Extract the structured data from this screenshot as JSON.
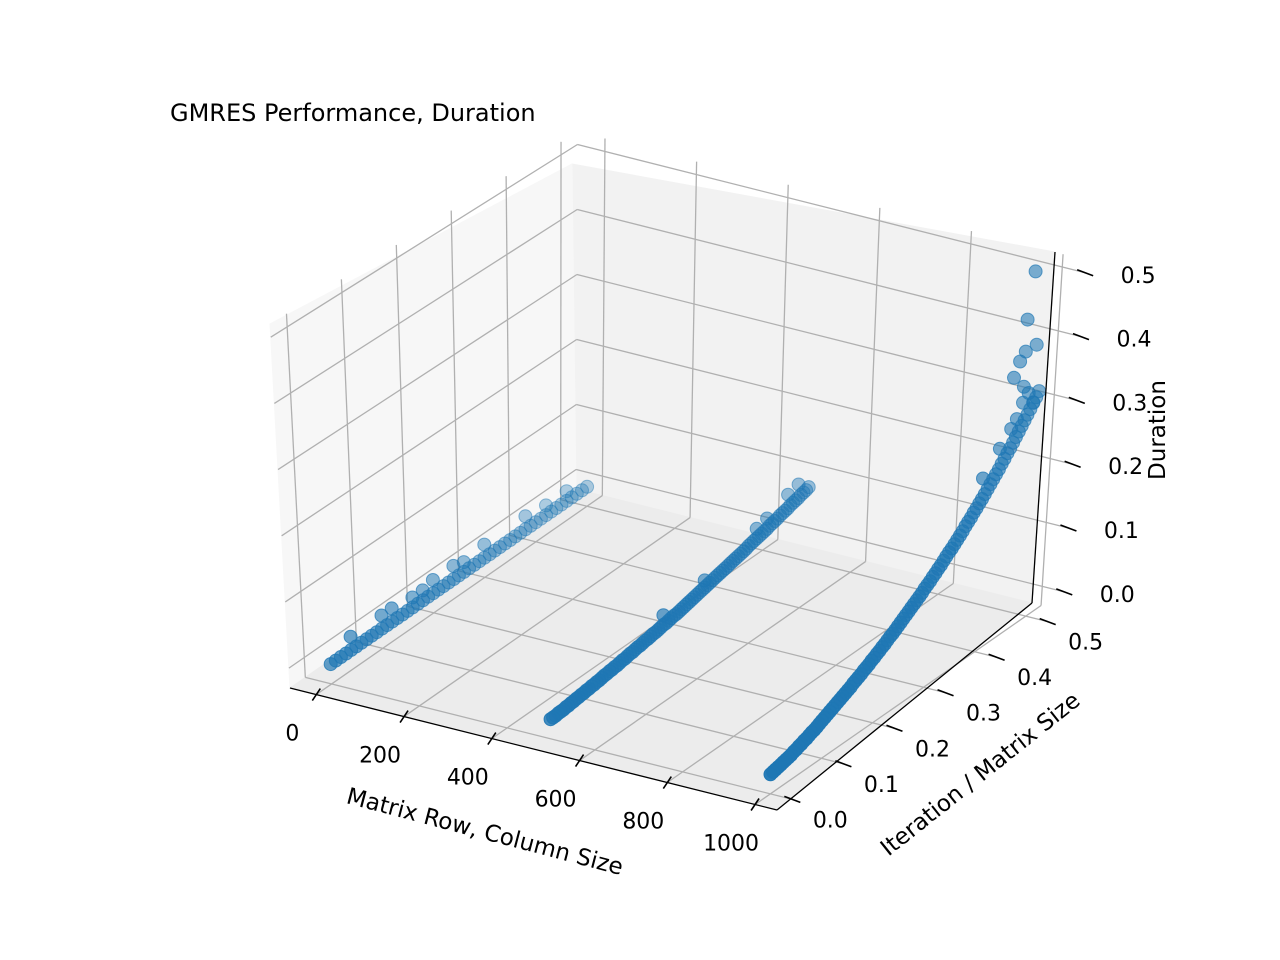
{
  "chart_data": {
    "type": "scatter",
    "title": "GMRES Performance, Duration",
    "xlabel": "Matrix Row, Column Size",
    "ylabel": "Iteration / Matrix Size",
    "zlabel": "Duration",
    "xlim": [
      -60,
      1050
    ],
    "ylim": [
      -0.03,
      0.53
    ],
    "zlim": [
      -0.03,
      0.52
    ],
    "x_ticks": [
      0,
      200,
      400,
      600,
      800,
      1000
    ],
    "y_ticks": [
      0.0,
      0.1,
      0.2,
      0.3,
      0.4,
      0.5
    ],
    "z_ticks": [
      0.0,
      0.1,
      0.2,
      0.3,
      0.4,
      0.5
    ],
    "x_tick_labels": [
      "0",
      "200",
      "400",
      "600",
      "800",
      "1000"
    ],
    "y_tick_labels": [
      "0.0",
      "0.1",
      "0.2",
      "0.3",
      "0.4",
      "0.5"
    ],
    "z_tick_labels": [
      "0.0",
      "0.1",
      "0.2",
      "0.3",
      "0.4",
      "0.5"
    ],
    "grid": true,
    "marker_color": "#1f77b4",
    "series": [
      {
        "x": 0,
        "points": [
          [
            0.0,
            0.0
          ],
          [
            0.01,
            0.0
          ],
          [
            0.02,
            0.0
          ],
          [
            0.03,
            0.0
          ],
          [
            0.04,
            0.0
          ],
          [
            0.05,
            0.0
          ],
          [
            0.06,
            0.0
          ],
          [
            0.07,
            0.0
          ],
          [
            0.08,
            0.0
          ],
          [
            0.09,
            0.0
          ],
          [
            0.1,
            0.0
          ],
          [
            0.11,
            0.0
          ],
          [
            0.12,
            0.0
          ],
          [
            0.13,
            0.0
          ],
          [
            0.14,
            0.0
          ],
          [
            0.15,
            0.0
          ],
          [
            0.16,
            0.0
          ],
          [
            0.17,
            0.0
          ],
          [
            0.18,
            0.0
          ],
          [
            0.19,
            0.0
          ],
          [
            0.2,
            0.0
          ],
          [
            0.21,
            0.0
          ],
          [
            0.22,
            0.0
          ],
          [
            0.23,
            0.0
          ],
          [
            0.24,
            0.0
          ],
          [
            0.25,
            0.0
          ],
          [
            0.26,
            0.0
          ],
          [
            0.27,
            0.0
          ],
          [
            0.28,
            0.0
          ],
          [
            0.29,
            0.0
          ],
          [
            0.3,
            0.0
          ],
          [
            0.31,
            0.0
          ],
          [
            0.32,
            0.0
          ],
          [
            0.33,
            0.0
          ],
          [
            0.34,
            0.0
          ],
          [
            0.35,
            0.0
          ],
          [
            0.36,
            0.0
          ],
          [
            0.37,
            0.0
          ],
          [
            0.38,
            0.0
          ],
          [
            0.39,
            0.0
          ],
          [
            0.4,
            0.0
          ],
          [
            0.41,
            0.0
          ],
          [
            0.42,
            0.0
          ],
          [
            0.43,
            0.0
          ],
          [
            0.44,
            0.0
          ],
          [
            0.45,
            0.0
          ],
          [
            0.46,
            0.0
          ],
          [
            0.47,
            0.0
          ],
          [
            0.48,
            0.0
          ],
          [
            0.49,
            0.0
          ],
          [
            0.5,
            0.0
          ],
          [
            0.04,
            0.02
          ],
          [
            0.1,
            0.02
          ],
          [
            0.12,
            0.02
          ],
          [
            0.16,
            0.015
          ],
          [
            0.18,
            0.015
          ],
          [
            0.2,
            0.02
          ],
          [
            0.24,
            0.02
          ],
          [
            0.26,
            0.015
          ],
          [
            0.3,
            0.02
          ],
          [
            0.38,
            0.02
          ],
          [
            0.42,
            0.015
          ],
          [
            0.46,
            0.015
          ]
        ]
      },
      {
        "x": 500,
        "points": [
          [
            0.0,
            0.0
          ],
          [
            0.005,
            0.0
          ],
          [
            0.01,
            0.0
          ],
          [
            0.015,
            0.001
          ],
          [
            0.02,
            0.001
          ],
          [
            0.025,
            0.001
          ],
          [
            0.03,
            0.002
          ],
          [
            0.035,
            0.002
          ],
          [
            0.04,
            0.003
          ],
          [
            0.045,
            0.003
          ],
          [
            0.05,
            0.004
          ],
          [
            0.055,
            0.004
          ],
          [
            0.06,
            0.005
          ],
          [
            0.065,
            0.005
          ],
          [
            0.07,
            0.006
          ],
          [
            0.075,
            0.006
          ],
          [
            0.08,
            0.007
          ],
          [
            0.085,
            0.007
          ],
          [
            0.09,
            0.008
          ],
          [
            0.095,
            0.008
          ],
          [
            0.1,
            0.009
          ],
          [
            0.105,
            0.01
          ],
          [
            0.11,
            0.01
          ],
          [
            0.115,
            0.011
          ],
          [
            0.12,
            0.011
          ],
          [
            0.125,
            0.012
          ],
          [
            0.13,
            0.012
          ],
          [
            0.135,
            0.013
          ],
          [
            0.14,
            0.014
          ],
          [
            0.145,
            0.014
          ],
          [
            0.15,
            0.015
          ],
          [
            0.155,
            0.016
          ],
          [
            0.16,
            0.016
          ],
          [
            0.165,
            0.017
          ],
          [
            0.17,
            0.018
          ],
          [
            0.175,
            0.018
          ],
          [
            0.18,
            0.019
          ],
          [
            0.185,
            0.02
          ],
          [
            0.19,
            0.02
          ],
          [
            0.195,
            0.021
          ],
          [
            0.2,
            0.022
          ],
          [
            0.205,
            0.022
          ],
          [
            0.21,
            0.023
          ],
          [
            0.215,
            0.024
          ],
          [
            0.22,
            0.025
          ],
          [
            0.225,
            0.025
          ],
          [
            0.23,
            0.026
          ],
          [
            0.235,
            0.027
          ],
          [
            0.24,
            0.028
          ],
          [
            0.245,
            0.028
          ],
          [
            0.25,
            0.029
          ],
          [
            0.255,
            0.03
          ],
          [
            0.26,
            0.031
          ],
          [
            0.265,
            0.032
          ],
          [
            0.27,
            0.033
          ],
          [
            0.275,
            0.034
          ],
          [
            0.28,
            0.035
          ],
          [
            0.285,
            0.036
          ],
          [
            0.29,
            0.037
          ],
          [
            0.295,
            0.038
          ],
          [
            0.3,
            0.039
          ],
          [
            0.305,
            0.04
          ],
          [
            0.31,
            0.041
          ],
          [
            0.315,
            0.042
          ],
          [
            0.32,
            0.043
          ],
          [
            0.325,
            0.044
          ],
          [
            0.33,
            0.045
          ],
          [
            0.335,
            0.046
          ],
          [
            0.34,
            0.047
          ],
          [
            0.345,
            0.048
          ],
          [
            0.35,
            0.049
          ],
          [
            0.355,
            0.05
          ],
          [
            0.36,
            0.051
          ],
          [
            0.365,
            0.052
          ],
          [
            0.37,
            0.053
          ],
          [
            0.375,
            0.054
          ],
          [
            0.38,
            0.055
          ],
          [
            0.385,
            0.057
          ],
          [
            0.39,
            0.058
          ],
          [
            0.395,
            0.059
          ],
          [
            0.4,
            0.06
          ],
          [
            0.405,
            0.061
          ],
          [
            0.41,
            0.062
          ],
          [
            0.415,
            0.063
          ],
          [
            0.42,
            0.064
          ],
          [
            0.425,
            0.066
          ],
          [
            0.43,
            0.067
          ],
          [
            0.435,
            0.068
          ],
          [
            0.44,
            0.069
          ],
          [
            0.445,
            0.071
          ],
          [
            0.45,
            0.072
          ],
          [
            0.455,
            0.073
          ],
          [
            0.46,
            0.074
          ],
          [
            0.465,
            0.076
          ],
          [
            0.47,
            0.077
          ],
          [
            0.475,
            0.078
          ],
          [
            0.48,
            0.079
          ],
          [
            0.485,
            0.081
          ],
          [
            0.49,
            0.082
          ],
          [
            0.495,
            0.083
          ],
          [
            0.5,
            0.085
          ],
          [
            0.22,
            0.04
          ],
          [
            0.3,
            0.05
          ],
          [
            0.4,
            0.075
          ],
          [
            0.42,
            0.08
          ],
          [
            0.46,
            0.095
          ],
          [
            0.48,
            0.1
          ]
        ]
      },
      {
        "x": 1000,
        "points": [
          [
            0.0,
            0.0
          ],
          [
            0.005,
            0.001
          ],
          [
            0.01,
            0.002
          ],
          [
            0.015,
            0.003
          ],
          [
            0.02,
            0.004
          ],
          [
            0.025,
            0.005
          ],
          [
            0.03,
            0.006
          ],
          [
            0.035,
            0.007
          ],
          [
            0.04,
            0.008
          ],
          [
            0.045,
            0.01
          ],
          [
            0.05,
            0.011
          ],
          [
            0.055,
            0.013
          ],
          [
            0.06,
            0.014
          ],
          [
            0.065,
            0.016
          ],
          [
            0.07,
            0.017
          ],
          [
            0.075,
            0.019
          ],
          [
            0.08,
            0.021
          ],
          [
            0.085,
            0.022
          ],
          [
            0.09,
            0.024
          ],
          [
            0.095,
            0.026
          ],
          [
            0.1,
            0.028
          ],
          [
            0.105,
            0.03
          ],
          [
            0.11,
            0.032
          ],
          [
            0.115,
            0.034
          ],
          [
            0.12,
            0.036
          ],
          [
            0.125,
            0.038
          ],
          [
            0.13,
            0.04
          ],
          [
            0.135,
            0.042
          ],
          [
            0.14,
            0.044
          ],
          [
            0.145,
            0.046
          ],
          [
            0.15,
            0.048
          ],
          [
            0.155,
            0.05
          ],
          [
            0.16,
            0.053
          ],
          [
            0.165,
            0.055
          ],
          [
            0.17,
            0.057
          ],
          [
            0.175,
            0.059
          ],
          [
            0.18,
            0.062
          ],
          [
            0.185,
            0.064
          ],
          [
            0.19,
            0.066
          ],
          [
            0.195,
            0.069
          ],
          [
            0.2,
            0.071
          ],
          [
            0.205,
            0.074
          ],
          [
            0.21,
            0.076
          ],
          [
            0.215,
            0.079
          ],
          [
            0.22,
            0.081
          ],
          [
            0.225,
            0.084
          ],
          [
            0.23,
            0.087
          ],
          [
            0.235,
            0.089
          ],
          [
            0.24,
            0.092
          ],
          [
            0.245,
            0.095
          ],
          [
            0.25,
            0.098
          ],
          [
            0.255,
            0.101
          ],
          [
            0.26,
            0.104
          ],
          [
            0.265,
            0.107
          ],
          [
            0.27,
            0.11
          ],
          [
            0.275,
            0.113
          ],
          [
            0.28,
            0.116
          ],
          [
            0.285,
            0.119
          ],
          [
            0.29,
            0.122
          ],
          [
            0.295,
            0.126
          ],
          [
            0.3,
            0.129
          ],
          [
            0.305,
            0.132
          ],
          [
            0.31,
            0.136
          ],
          [
            0.315,
            0.139
          ],
          [
            0.32,
            0.143
          ],
          [
            0.325,
            0.146
          ],
          [
            0.33,
            0.15
          ],
          [
            0.335,
            0.154
          ],
          [
            0.34,
            0.158
          ],
          [
            0.345,
            0.161
          ],
          [
            0.35,
            0.165
          ],
          [
            0.355,
            0.169
          ],
          [
            0.36,
            0.173
          ],
          [
            0.365,
            0.177
          ],
          [
            0.37,
            0.182
          ],
          [
            0.375,
            0.186
          ],
          [
            0.38,
            0.19
          ],
          [
            0.385,
            0.195
          ],
          [
            0.39,
            0.199
          ],
          [
            0.395,
            0.204
          ],
          [
            0.4,
            0.208
          ],
          [
            0.405,
            0.213
          ],
          [
            0.41,
            0.218
          ],
          [
            0.415,
            0.223
          ],
          [
            0.42,
            0.228
          ],
          [
            0.425,
            0.233
          ],
          [
            0.43,
            0.238
          ],
          [
            0.435,
            0.244
          ],
          [
            0.44,
            0.249
          ],
          [
            0.445,
            0.255
          ],
          [
            0.45,
            0.26
          ],
          [
            0.455,
            0.266
          ],
          [
            0.46,
            0.272
          ],
          [
            0.465,
            0.278
          ],
          [
            0.47,
            0.284
          ],
          [
            0.475,
            0.29
          ],
          [
            0.48,
            0.296
          ],
          [
            0.485,
            0.302
          ],
          [
            0.49,
            0.309
          ],
          [
            0.495,
            0.315
          ],
          [
            0.5,
            0.322
          ],
          [
            0.4,
            0.24
          ],
          [
            0.43,
            0.27
          ],
          [
            0.45,
            0.29
          ],
          [
            0.46,
            0.3
          ],
          [
            0.47,
            0.32
          ],
          [
            0.47,
            0.345
          ],
          [
            0.48,
            0.33
          ],
          [
            0.49,
            0.31
          ],
          [
            0.45,
            0.37
          ],
          [
            0.46,
            0.39
          ],
          [
            0.47,
            0.4
          ],
          [
            0.49,
            0.4
          ],
          [
            0.47,
            0.45
          ],
          [
            0.48,
            0.52
          ]
        ]
      }
    ]
  }
}
